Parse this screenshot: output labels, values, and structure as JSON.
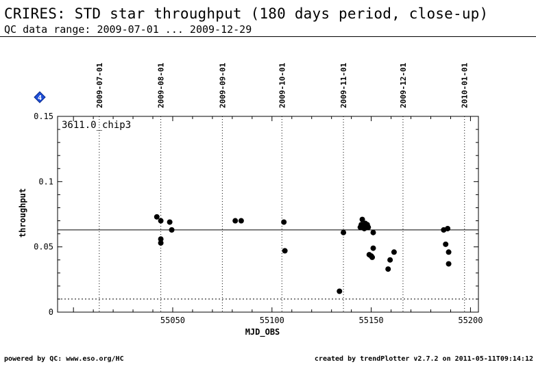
{
  "header": {
    "title": "CRIRES: STD star throughput (180 days period, close-up)",
    "subtitle": "QC data range: 2009-07-01 ... 2009-12-29"
  },
  "footer": {
    "left": "powered by QC: www.eso.org/HC",
    "right": "created by trendPlotter v2.7.2 on 2011-05-11T09:14:12"
  },
  "chart_data": {
    "type": "scatter",
    "xlabel": "MJD_OBS",
    "ylabel": "throughput",
    "xlim": [
      54992,
      55204
    ],
    "ylim": [
      0,
      0.15
    ],
    "xticks": [
      55050,
      55100,
      55150,
      55200
    ],
    "yticks": [
      0,
      0.05,
      0.1,
      0.15
    ],
    "ytick_labels": [
      "0",
      "0.05",
      "0.1",
      "0.15"
    ],
    "panel_label": "3611.0_chip3",
    "legend_marker_label": "4",
    "reference_line": 0.063,
    "lower_limit_line": 0.01,
    "month_markers": [
      {
        "label": "2009-07-01",
        "mjd": 55013
      },
      {
        "label": "2009-08-01",
        "mjd": 55044
      },
      {
        "label": "2009-09-01",
        "mjd": 55075
      },
      {
        "label": "2009-10-01",
        "mjd": 55105
      },
      {
        "label": "2009-11-01",
        "mjd": 55136
      },
      {
        "label": "2009-12-01",
        "mjd": 55166
      },
      {
        "label": "2010-01-01",
        "mjd": 55197
      }
    ],
    "points": [
      {
        "x": 55042.0,
        "y": 0.073
      },
      {
        "x": 55044.0,
        "y": 0.07
      },
      {
        "x": 55044.0,
        "y": 0.056
      },
      {
        "x": 55044.0,
        "y": 0.053
      },
      {
        "x": 55048.5,
        "y": 0.069
      },
      {
        "x": 55049.5,
        "y": 0.063
      },
      {
        "x": 55081.5,
        "y": 0.07
      },
      {
        "x": 55084.5,
        "y": 0.07
      },
      {
        "x": 55106.0,
        "y": 0.069
      },
      {
        "x": 55106.5,
        "y": 0.047
      },
      {
        "x": 55134.0,
        "y": 0.016
      },
      {
        "x": 55136.0,
        "y": 0.061
      },
      {
        "x": 55144.5,
        "y": 0.065
      },
      {
        "x": 55145.0,
        "y": 0.067
      },
      {
        "x": 55145.5,
        "y": 0.071
      },
      {
        "x": 55146.0,
        "y": 0.066
      },
      {
        "x": 55146.5,
        "y": 0.064
      },
      {
        "x": 55147.0,
        "y": 0.068
      },
      {
        "x": 55147.5,
        "y": 0.065
      },
      {
        "x": 55148.0,
        "y": 0.067
      },
      {
        "x": 55148.5,
        "y": 0.065
      },
      {
        "x": 55149.0,
        "y": 0.044
      },
      {
        "x": 55150.0,
        "y": 0.043
      },
      {
        "x": 55150.5,
        "y": 0.042
      },
      {
        "x": 55151.0,
        "y": 0.061
      },
      {
        "x": 55151.0,
        "y": 0.049
      },
      {
        "x": 55158.5,
        "y": 0.033
      },
      {
        "x": 55159.5,
        "y": 0.04
      },
      {
        "x": 55161.5,
        "y": 0.046
      },
      {
        "x": 55186.5,
        "y": 0.063
      },
      {
        "x": 55187.5,
        "y": 0.052
      },
      {
        "x": 55188.5,
        "y": 0.064
      },
      {
        "x": 55189.0,
        "y": 0.046
      },
      {
        "x": 55189.0,
        "y": 0.037
      }
    ]
  }
}
